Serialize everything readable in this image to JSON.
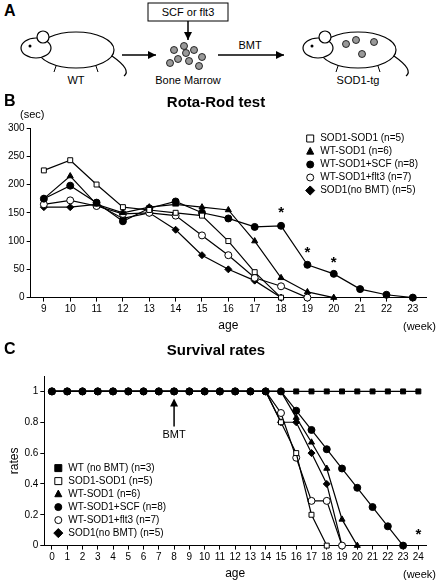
{
  "diagram": {
    "label": "A",
    "treatment": "SCF or flt3",
    "donor": "WT",
    "cells": "Bone Marrow",
    "transfer": "BMT",
    "recipient": "SOD1-tg"
  },
  "chart_data": [
    {
      "type": "line",
      "panel": "B",
      "title": "Rota-Rod test",
      "xlabel": "age",
      "x_unit": "(week)",
      "y_unit": "(sec)",
      "x": [
        9,
        10,
        11,
        12,
        13,
        14,
        15,
        16,
        17,
        18,
        19,
        20,
        21,
        22,
        23
      ],
      "xlim": [
        8.5,
        23.5
      ],
      "xticks": [
        9,
        10,
        11,
        12,
        13,
        14,
        15,
        16,
        17,
        18,
        19,
        20,
        21,
        22,
        23
      ],
      "ylim": [
        0,
        300
      ],
      "yticks": [
        0,
        50,
        100,
        150,
        200,
        250,
        300
      ],
      "grid": false,
      "legend": "upper right",
      "series": [
        {
          "name": "SOD1-SOD1 (n=5)",
          "color": "#000000",
          "marker": "square-open",
          "line_style": "solid",
          "values": [
            225,
            243,
            200,
            160,
            155,
            150,
            145,
            100,
            45,
            0,
            null,
            null,
            null,
            null,
            null
          ]
        },
        {
          "name": "WT-SOD1 (n=6)",
          "color": "#000000",
          "marker": "triangle",
          "line_style": "solid",
          "values": [
            175,
            215,
            165,
            150,
            160,
            165,
            160,
            155,
            100,
            35,
            10,
            0,
            null,
            null,
            null
          ]
        },
        {
          "name": "WT-SOD1+SCF (n=8)",
          "color": "#000000",
          "marker": "circle",
          "line_style": "solid",
          "values": [
            175,
            198,
            168,
            135,
            158,
            170,
            150,
            140,
            125,
            127,
            58,
            42,
            15,
            5,
            0
          ]
        },
        {
          "name": "WT-SOD1+flt3 (n=7)",
          "color": "#000000",
          "marker": "circle-open",
          "line_style": "solid",
          "values": [
            165,
            172,
            162,
            148,
            150,
            145,
            110,
            75,
            35,
            20,
            0,
            null,
            null,
            null,
            null
          ]
        },
        {
          "name": "SOD1(no BMT) (n=5)",
          "color": "#000000",
          "marker": "diamond",
          "line_style": "solid",
          "values": [
            160,
            160,
            165,
            140,
            150,
            120,
            75,
            50,
            30,
            0,
            null,
            null,
            null,
            null,
            null
          ]
        }
      ],
      "annotations": [
        {
          "text": "*",
          "x": 18,
          "y": 150
        },
        {
          "text": "*",
          "x": 19,
          "y": 80
        },
        {
          "text": "*",
          "x": 20,
          "y": 62
        }
      ]
    },
    {
      "type": "line",
      "panel": "C",
      "title": "Survival rates",
      "xlabel": "age",
      "x_unit": "(week)",
      "ylabel": "rates",
      "x": [
        0,
        1,
        2,
        3,
        4,
        5,
        6,
        7,
        8,
        9,
        10,
        11,
        12,
        13,
        14,
        15,
        16,
        17,
        18,
        19,
        20,
        21,
        22,
        23,
        24
      ],
      "xlim": [
        -0.5,
        24.5
      ],
      "xticks": [
        0,
        1,
        2,
        3,
        4,
        5,
        6,
        7,
        8,
        9,
        10,
        11,
        12,
        13,
        14,
        15,
        16,
        17,
        18,
        19,
        20,
        21,
        22,
        23,
        24
      ],
      "ylim": [
        0,
        1.1
      ],
      "yticks": [
        0,
        0.2,
        0.4,
        0.6,
        0.8,
        1
      ],
      "grid": false,
      "legend": "lower left",
      "series": [
        {
          "name": "WT (no BMT) (n=3)",
          "color": "#000000",
          "marker": "square",
          "line_style": "solid",
          "values": [
            1,
            1,
            1,
            1,
            1,
            1,
            1,
            1,
            1,
            1,
            1,
            1,
            1,
            1,
            1,
            1,
            1,
            1,
            1,
            1,
            1,
            1,
            1,
            1,
            1
          ]
        },
        {
          "name": "SOD1-SOD1 (n=5)",
          "color": "#000000",
          "marker": "square-open",
          "line_style": "solid",
          "values": [
            1,
            1,
            1,
            1,
            1,
            1,
            1,
            1,
            1,
            1,
            1,
            1,
            1,
            1,
            1,
            0.8,
            0.6,
            0.2,
            0,
            null,
            null,
            null,
            null,
            null,
            null
          ]
        },
        {
          "name": "WT-SOD1 (n=6)",
          "color": "#000000",
          "marker": "triangle",
          "line_style": "solid",
          "values": [
            1,
            1,
            1,
            1,
            1,
            1,
            1,
            1,
            1,
            1,
            1,
            1,
            1,
            1,
            1,
            1,
            0.83,
            0.67,
            0.5,
            0.17,
            0,
            null,
            null,
            null,
            null
          ]
        },
        {
          "name": "WT-SOD1+SCF (n=8)",
          "color": "#000000",
          "marker": "circle",
          "line_style": "solid",
          "values": [
            1,
            1,
            1,
            1,
            1,
            1,
            1,
            1,
            1,
            1,
            1,
            1,
            1,
            1,
            1,
            1,
            0.875,
            0.75,
            0.625,
            0.5,
            0.375,
            0.25,
            0.125,
            0,
            null
          ]
        },
        {
          "name": "WT-SOD1+flt3 (n=7)",
          "color": "#000000",
          "marker": "circle-open",
          "line_style": "solid",
          "values": [
            1,
            1,
            1,
            1,
            1,
            1,
            1,
            1,
            1,
            1,
            1,
            1,
            1,
            1,
            1,
            0.86,
            0.57,
            0.29,
            0.29,
            0,
            null,
            null,
            null,
            null,
            null
          ]
        },
        {
          "name": "SOD1(no BMT) (n=5)",
          "color": "#000000",
          "marker": "diamond",
          "line_style": "solid",
          "values": [
            1,
            1,
            1,
            1,
            1,
            1,
            1,
            1,
            1,
            1,
            1,
            1,
            1,
            1,
            1,
            0.8,
            0.8,
            0.6,
            0.4,
            0,
            null,
            null,
            null,
            null,
            null
          ]
        }
      ],
      "annotations": [
        {
          "type": "arrow",
          "text": "BMT",
          "x": 8,
          "y": 0.72
        },
        {
          "text": "*",
          "x": 24,
          "y": 0.07
        }
      ]
    }
  ]
}
